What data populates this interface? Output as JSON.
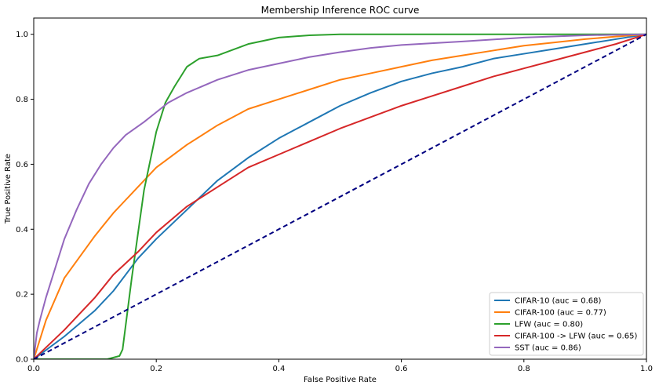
{
  "chart_data": {
    "type": "line",
    "title": "Membership Inference ROC curve",
    "xlabel": "False Positive Rate",
    "ylabel": "True Positive Rate",
    "xlim": [
      0,
      1
    ],
    "ylim": [
      0,
      1.05
    ],
    "xticks": [
      {
        "value": 0.0,
        "label": "0.0"
      },
      {
        "value": 0.2,
        "label": "0.2"
      },
      {
        "value": 0.4,
        "label": "0.4"
      },
      {
        "value": 0.6,
        "label": "0.6"
      },
      {
        "value": 0.8,
        "label": "0.8"
      },
      {
        "value": 1.0,
        "label": "1.0"
      }
    ],
    "yticks": [
      {
        "value": 0.0,
        "label": "0.0"
      },
      {
        "value": 0.2,
        "label": "0.2"
      },
      {
        "value": 0.4,
        "label": "0.4"
      },
      {
        "value": 0.6,
        "label": "0.6"
      },
      {
        "value": 0.8,
        "label": "0.8"
      },
      {
        "value": 1.0,
        "label": "1.0"
      }
    ],
    "grid": false,
    "legend_position": "lower-right",
    "series": [
      {
        "name": "CIFAR-10 (auc = 0.68)",
        "color": "#1f77b4",
        "x": [
          0.0,
          0.05,
          0.1,
          0.13,
          0.15,
          0.17,
          0.2,
          0.25,
          0.3,
          0.35,
          0.4,
          0.45,
          0.5,
          0.55,
          0.6,
          0.65,
          0.7,
          0.75,
          0.8,
          0.85,
          0.9,
          0.95,
          1.0
        ],
        "y": [
          0.0,
          0.07,
          0.15,
          0.21,
          0.26,
          0.31,
          0.37,
          0.46,
          0.55,
          0.62,
          0.68,
          0.73,
          0.78,
          0.82,
          0.855,
          0.88,
          0.9,
          0.925,
          0.94,
          0.955,
          0.97,
          0.985,
          1.0
        ]
      },
      {
        "name": "CIFAR-100 (auc = 0.77)",
        "color": "#ff7f0e",
        "x": [
          0.0,
          0.02,
          0.05,
          0.1,
          0.13,
          0.15,
          0.18,
          0.2,
          0.25,
          0.3,
          0.35,
          0.4,
          0.45,
          0.5,
          0.55,
          0.6,
          0.65,
          0.7,
          0.75,
          0.8,
          0.85,
          0.9,
          0.95,
          1.0
        ],
        "y": [
          0.0,
          0.12,
          0.25,
          0.38,
          0.45,
          0.49,
          0.55,
          0.59,
          0.66,
          0.72,
          0.77,
          0.8,
          0.83,
          0.86,
          0.88,
          0.9,
          0.92,
          0.935,
          0.95,
          0.965,
          0.975,
          0.985,
          0.993,
          1.0
        ]
      },
      {
        "name": "LFW (auc = 0.80)",
        "color": "#2ca02c",
        "x": [
          0.0,
          0.12,
          0.14,
          0.145,
          0.16,
          0.18,
          0.2,
          0.215,
          0.23,
          0.25,
          0.27,
          0.3,
          0.35,
          0.4,
          0.45,
          0.5,
          0.55,
          0.6,
          0.7,
          0.8,
          0.9,
          1.0
        ],
        "y": [
          0.0,
          0.0,
          0.01,
          0.03,
          0.25,
          0.52,
          0.7,
          0.79,
          0.84,
          0.9,
          0.925,
          0.935,
          0.97,
          0.99,
          0.997,
          1.0,
          1.0,
          1.0,
          1.0,
          1.0,
          1.0,
          1.0
        ]
      },
      {
        "name": "CIFAR-100 -> LFW (auc = 0.65)",
        "color": "#d62728",
        "x": [
          0.0,
          0.05,
          0.1,
          0.13,
          0.17,
          0.2,
          0.25,
          0.3,
          0.35,
          0.4,
          0.45,
          0.5,
          0.55,
          0.6,
          0.65,
          0.7,
          0.75,
          0.8,
          0.85,
          0.9,
          0.95,
          1.0
        ],
        "y": [
          0.0,
          0.09,
          0.19,
          0.26,
          0.33,
          0.39,
          0.47,
          0.53,
          0.59,
          0.63,
          0.67,
          0.71,
          0.745,
          0.78,
          0.81,
          0.84,
          0.87,
          0.895,
          0.92,
          0.945,
          0.97,
          1.0
        ]
      },
      {
        "name": "SST (auc = 0.86)",
        "color": "#9467bd",
        "x": [
          0.0,
          0.005,
          0.01,
          0.02,
          0.03,
          0.05,
          0.07,
          0.09,
          0.11,
          0.13,
          0.15,
          0.18,
          0.2,
          0.22,
          0.25,
          0.3,
          0.35,
          0.4,
          0.45,
          0.5,
          0.55,
          0.6,
          0.7,
          0.8,
          0.9,
          1.0
        ],
        "y": [
          0.0,
          0.08,
          0.12,
          0.19,
          0.25,
          0.37,
          0.46,
          0.54,
          0.6,
          0.65,
          0.69,
          0.73,
          0.76,
          0.79,
          0.82,
          0.86,
          0.89,
          0.91,
          0.93,
          0.945,
          0.958,
          0.967,
          0.978,
          0.99,
          0.997,
          1.0
        ]
      }
    ],
    "reference_line": {
      "color": "#000080",
      "style": "dashed",
      "x": [
        0,
        1
      ],
      "y": [
        0,
        1
      ]
    }
  }
}
